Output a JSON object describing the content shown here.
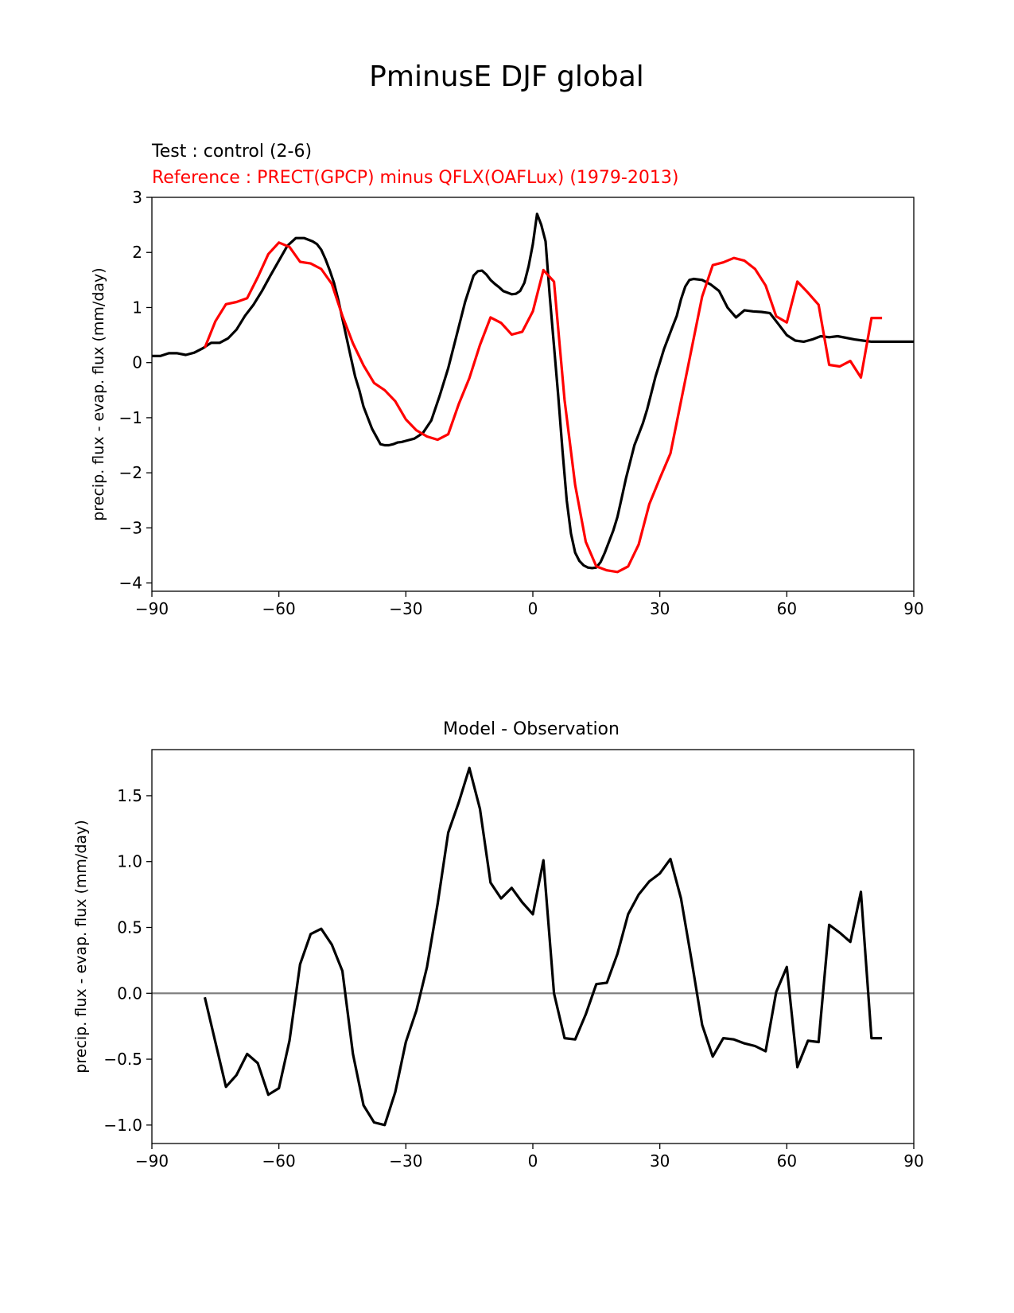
{
  "figure": {
    "title": "PminusE DJF global",
    "test_label": "Test : control (2-6)",
    "ref_label": "Reference : PRECT(GPCP) minus QFLX(OAFLux) (1979-2013)",
    "colors": {
      "test": "#000000",
      "reference": "#ff0000",
      "zero_line": "#808080"
    }
  },
  "chart_data": [
    {
      "type": "line",
      "title": "",
      "xlabel": "",
      "ylabel": "precip. flux - evap. flux (mm/day)",
      "xlim": [
        -90,
        90
      ],
      "ylim": [
        -4.15,
        3.0
      ],
      "xticks": [
        -90,
        -60,
        -30,
        0,
        30,
        60,
        90
      ],
      "xtick_labels": [
        "−90",
        "−60",
        "−30",
        "0",
        "30",
        "60",
        "90"
      ],
      "yticks": [
        -4,
        -3,
        -2,
        -1,
        0,
        1,
        2,
        3
      ],
      "ytick_labels": [
        "−4",
        "−3",
        "−2",
        "−1",
        "0",
        "1",
        "2",
        "3"
      ],
      "series": [
        {
          "name": "Test : control (2-6)",
          "color": "#000000",
          "x": [
            -90,
            -88,
            -86,
            -84,
            -82,
            -80,
            -78,
            -76,
            -74,
            -72,
            -70,
            -68,
            -66,
            -64,
            -62,
            -60,
            -58,
            -56,
            -54,
            -52,
            -51,
            -50,
            -49,
            -48,
            -47,
            -46,
            -45,
            -44,
            -43,
            -42,
            -41,
            -40,
            -38,
            -36,
            -35,
            -34,
            -33,
            -32,
            -31,
            -30,
            -28,
            -26,
            -24,
            -22,
            -20,
            -18,
            -16,
            -14,
            -13,
            -12,
            -11,
            -10,
            -9,
            -8,
            -7,
            -6,
            -5,
            -4,
            -3,
            -2,
            -1,
            0,
            1,
            2,
            3,
            4,
            5,
            6,
            7,
            8,
            9,
            10,
            11,
            12,
            13,
            14,
            15,
            16,
            17,
            18,
            19,
            20,
            21,
            22,
            23,
            24,
            25,
            26,
            27,
            28,
            29,
            30,
            31,
            32,
            33,
            34,
            35,
            36,
            37,
            38,
            40,
            42,
            44,
            46,
            48,
            50,
            52,
            54,
            56,
            58,
            60,
            62,
            64,
            66,
            68,
            70,
            72,
            74,
            76,
            78,
            80,
            82,
            84,
            86,
            88,
            90
          ],
          "values": [
            0.12,
            0.12,
            0.17,
            0.17,
            0.14,
            0.18,
            0.26,
            0.36,
            0.36,
            0.44,
            0.6,
            0.85,
            1.05,
            1.3,
            1.58,
            1.85,
            2.12,
            2.26,
            2.26,
            2.2,
            2.15,
            2.05,
            1.88,
            1.68,
            1.45,
            1.15,
            0.8,
            0.45,
            0.1,
            -0.25,
            -0.5,
            -0.8,
            -1.2,
            -1.48,
            -1.5,
            -1.5,
            -1.48,
            -1.45,
            -1.44,
            -1.42,
            -1.38,
            -1.28,
            -1.05,
            -0.6,
            -0.1,
            0.5,
            1.1,
            1.58,
            1.66,
            1.67,
            1.6,
            1.5,
            1.43,
            1.37,
            1.3,
            1.27,
            1.24,
            1.25,
            1.3,
            1.45,
            1.75,
            2.15,
            2.7,
            2.5,
            2.2,
            1.2,
            0.3,
            -0.6,
            -1.6,
            -2.5,
            -3.1,
            -3.45,
            -3.6,
            -3.68,
            -3.72,
            -3.73,
            -3.72,
            -3.62,
            -3.45,
            -3.25,
            -3.05,
            -2.8,
            -2.45,
            -2.1,
            -1.8,
            -1.5,
            -1.3,
            -1.1,
            -0.85,
            -0.55,
            -0.25,
            0.0,
            0.25,
            0.45,
            0.65,
            0.85,
            1.15,
            1.38,
            1.5,
            1.52,
            1.5,
            1.42,
            1.3,
            1.0,
            0.82,
            0.95,
            0.93,
            0.92,
            0.9,
            0.7,
            0.5,
            0.4,
            0.38,
            0.42,
            0.48,
            0.46,
            0.48,
            0.45,
            0.42,
            0.4,
            0.38,
            0.38,
            0.38,
            0.38,
            0.38,
            0.38
          ]
        },
        {
          "name": "Reference : PRECT(GPCP) minus QFLX(OAFLux) (1979-2013)",
          "color": "#ff0000",
          "x": [
            -77.5,
            -75,
            -72.5,
            -70,
            -67.5,
            -65,
            -62.5,
            -60,
            -57.5,
            -55,
            -52.5,
            -50,
            -47.5,
            -45,
            -42.5,
            -40,
            -37.5,
            -35,
            -32.5,
            -30,
            -27.5,
            -25,
            -22.5,
            -20,
            -17.5,
            -15,
            -12.5,
            -10,
            -7.5,
            -5,
            -2.5,
            0,
            2.5,
            5,
            7.5,
            10,
            12.5,
            15,
            17.5,
            20,
            22.5,
            25,
            27.5,
            30,
            32.5,
            35,
            37.5,
            40,
            42.5,
            45,
            47.5,
            50,
            52.5,
            55,
            57.5,
            60,
            62.5,
            65,
            67.5,
            70,
            72.5,
            75,
            77.5,
            80,
            82.5
          ],
          "values": [
            0.27,
            0.75,
            1.06,
            1.1,
            1.17,
            1.55,
            1.97,
            2.18,
            2.1,
            1.83,
            1.8,
            1.7,
            1.43,
            0.85,
            0.35,
            -0.05,
            -0.37,
            -0.5,
            -0.7,
            -1.03,
            -1.23,
            -1.34,
            -1.4,
            -1.3,
            -0.75,
            -0.28,
            0.32,
            0.82,
            0.72,
            0.51,
            0.56,
            0.93,
            1.68,
            1.47,
            -0.68,
            -2.22,
            -3.25,
            -3.7,
            -3.77,
            -3.8,
            -3.7,
            -3.3,
            -2.57,
            -2.1,
            -1.65,
            -0.7,
            0.25,
            1.2,
            1.77,
            1.82,
            1.9,
            1.85,
            1.7,
            1.4,
            0.84,
            0.73,
            1.47,
            1.27,
            1.05,
            -0.04,
            -0.07,
            0.03,
            -0.27,
            0.81,
            0.81
          ]
        }
      ]
    },
    {
      "type": "line",
      "title": "Model - Observation",
      "xlabel": "",
      "ylabel": "precip. flux - evap. flux (mm/day)",
      "xlim": [
        -90,
        90
      ],
      "ylim": [
        -1.14,
        1.85
      ],
      "xticks": [
        -90,
        -60,
        -30,
        0,
        30,
        60,
        90
      ],
      "xtick_labels": [
        "−90",
        "−60",
        "−30",
        "0",
        "30",
        "60",
        "90"
      ],
      "yticks": [
        -1.0,
        -0.5,
        0.0,
        0.5,
        1.0,
        1.5
      ],
      "ytick_labels": [
        "−1.0",
        "−0.5",
        "0.0",
        "0.5",
        "1.0",
        "1.5"
      ],
      "reference_line": 0.0,
      "series": [
        {
          "name": "Model - Observation",
          "color": "#000000",
          "x": [
            -77.5,
            -75,
            -72.5,
            -70,
            -67.5,
            -65,
            -62.5,
            -60,
            -57.5,
            -55,
            -52.5,
            -50,
            -47.5,
            -45,
            -42.5,
            -40,
            -37.5,
            -35,
            -32.5,
            -30,
            -27.5,
            -25,
            -22.5,
            -20,
            -17.5,
            -15,
            -12.5,
            -10,
            -7.5,
            -5,
            -2.5,
            0,
            2.5,
            5,
            7.5,
            10,
            12.5,
            15,
            17.5,
            20,
            22.5,
            25,
            27.5,
            30,
            32.5,
            35,
            37.5,
            40,
            42.5,
            45,
            47.5,
            50,
            52.5,
            55,
            57.5,
            60,
            62.5,
            65,
            67.5,
            70,
            72.5,
            75,
            77.5,
            80,
            82.5
          ],
          "values": [
            -0.03,
            -0.37,
            -0.71,
            -0.62,
            -0.46,
            -0.53,
            -0.77,
            -0.72,
            -0.36,
            0.22,
            0.45,
            0.49,
            0.37,
            0.17,
            -0.46,
            -0.85,
            -0.98,
            -1.0,
            -0.75,
            -0.37,
            -0.13,
            0.2,
            0.68,
            1.22,
            1.45,
            1.71,
            1.4,
            0.84,
            0.72,
            0.8,
            0.69,
            0.6,
            1.01,
            0.0,
            -0.34,
            -0.35,
            -0.16,
            0.07,
            0.08,
            0.3,
            0.6,
            0.75,
            0.85,
            0.91,
            1.02,
            0.72,
            0.25,
            -0.24,
            -0.48,
            -0.34,
            -0.35,
            -0.38,
            -0.4,
            -0.44,
            0.01,
            0.2,
            -0.56,
            -0.36,
            -0.37,
            0.52,
            0.46,
            0.39,
            0.77,
            -0.34,
            -0.34
          ]
        }
      ]
    }
  ]
}
